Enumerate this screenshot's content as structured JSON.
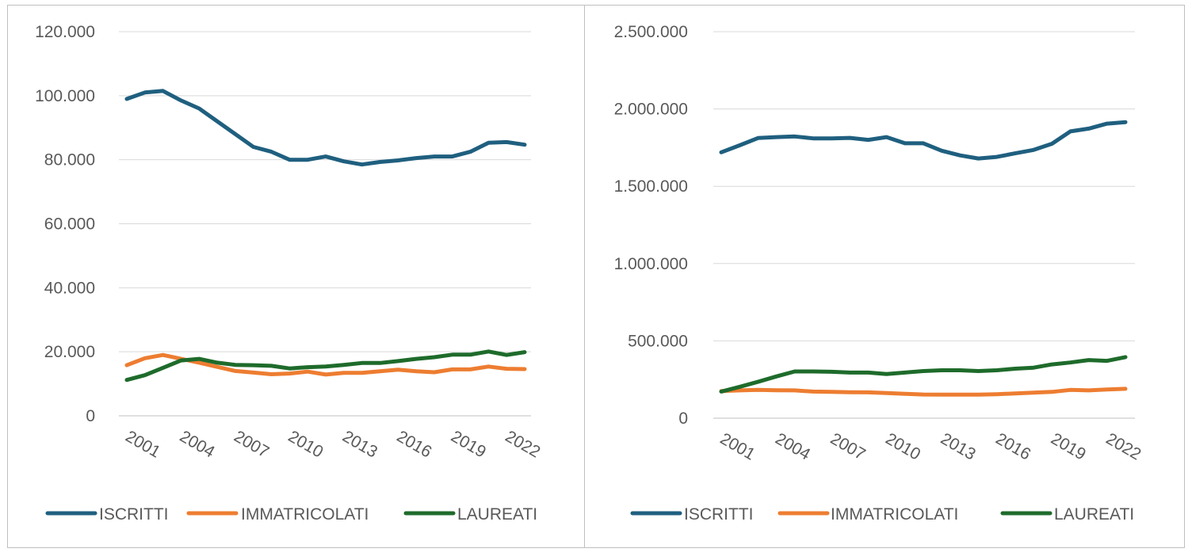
{
  "colors": {
    "ISCRITTI": "#1f5f7f",
    "IMMATRICOLATI": "#ed7d31",
    "LAUREATI": "#1e6b2b",
    "grid": "#d9d9d9",
    "text": "#595959"
  },
  "chart_data": [
    {
      "type": "line",
      "title": "",
      "xlabel": "",
      "ylabel": "",
      "ylim": [
        0,
        120000
      ],
      "y_ticks": [
        "0",
        "20.000",
        "40.000",
        "60.000",
        "80.000",
        "100.000",
        "120.000"
      ],
      "x": [
        2000,
        2001,
        2002,
        2003,
        2004,
        2005,
        2006,
        2007,
        2008,
        2009,
        2010,
        2011,
        2012,
        2013,
        2014,
        2015,
        2016,
        2017,
        2018,
        2019,
        2020,
        2021,
        2022
      ],
      "x_tick_labels": [
        "2001",
        "2004",
        "2007",
        "2010",
        "2013",
        "2016",
        "2019",
        "2022"
      ],
      "x_tick_values": [
        2001,
        2004,
        2007,
        2010,
        2013,
        2016,
        2019,
        2022
      ],
      "grid": true,
      "legend_position": "bottom",
      "series": [
        {
          "name": "ISCRITTI",
          "values": [
            99000,
            101000,
            101500,
            98500,
            96000,
            92000,
            88000,
            84000,
            82500,
            80000,
            80000,
            81000,
            79500,
            78500,
            79300,
            79800,
            80500,
            81000,
            81000,
            82500,
            85300,
            85500,
            84700
          ]
        },
        {
          "name": "IMMATRICOLATI",
          "values": [
            15800,
            18000,
            19000,
            17800,
            16600,
            15300,
            14000,
            13500,
            13000,
            13200,
            13800,
            12900,
            13400,
            13400,
            13900,
            14400,
            13900,
            13600,
            14500,
            14500,
            15400,
            14700,
            14600
          ]
        },
        {
          "name": "LAUREATI",
          "values": [
            11200,
            12700,
            15000,
            17300,
            17800,
            16600,
            15900,
            15800,
            15600,
            14800,
            15200,
            15400,
            15900,
            16500,
            16500,
            17100,
            17800,
            18300,
            19100,
            19100,
            20100,
            19000,
            19900
          ]
        }
      ]
    },
    {
      "type": "line",
      "title": "",
      "xlabel": "",
      "ylabel": "",
      "ylim": [
        0,
        2500000
      ],
      "y_ticks": [
        "0",
        "500.000",
        "1.000.000",
        "1.500.000",
        "2.000.000",
        "2.500.000"
      ],
      "x": [
        2000,
        2001,
        2002,
        2003,
        2004,
        2005,
        2006,
        2007,
        2008,
        2009,
        2010,
        2011,
        2012,
        2013,
        2014,
        2015,
        2016,
        2017,
        2018,
        2019,
        2020,
        2021,
        2022
      ],
      "x_tick_labels": [
        "2001",
        "2004",
        "2007",
        "2010",
        "2013",
        "2016",
        "2019",
        "2022"
      ],
      "x_tick_values": [
        2001,
        2004,
        2007,
        2010,
        2013,
        2016,
        2019,
        2022
      ],
      "grid": true,
      "legend_position": "bottom",
      "series": [
        {
          "name": "ISCRITTI",
          "values": [
            1720000,
            1765000,
            1812000,
            1818000,
            1822000,
            1810000,
            1810000,
            1813000,
            1800000,
            1818000,
            1778000,
            1778000,
            1730000,
            1700000,
            1680000,
            1690000,
            1713000,
            1735000,
            1775000,
            1855000,
            1873000,
            1905000,
            1915000
          ]
        },
        {
          "name": "IMMATRICOLATI",
          "values": [
            175000,
            180000,
            183000,
            181000,
            180000,
            172000,
            170000,
            168000,
            167000,
            163000,
            158000,
            153000,
            152000,
            152000,
            152000,
            155000,
            160000,
            165000,
            170000,
            183000,
            180000,
            186000,
            190000
          ]
        },
        {
          "name": "LAUREATI",
          "values": [
            172000,
            203000,
            235000,
            270000,
            302000,
            302000,
            300000,
            295000,
            295000,
            286000,
            295000,
            305000,
            310000,
            310000,
            305000,
            310000,
            320000,
            327000,
            348000,
            360000,
            376000,
            371000,
            395000
          ]
        }
      ]
    }
  ]
}
